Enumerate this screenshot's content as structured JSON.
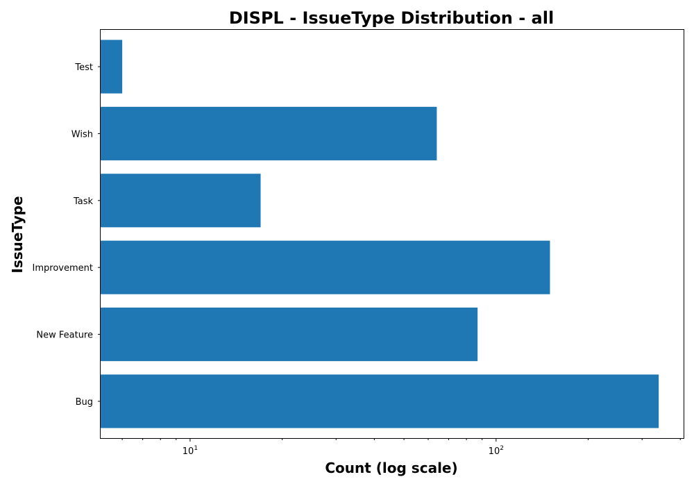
{
  "chart_data": {
    "type": "bar",
    "orientation": "horizontal",
    "title": "DISPL - IssueType Distribution - all",
    "xlabel": "Count (log scale)",
    "ylabel": "IssueType",
    "x_scale": "log",
    "xlim": [
      5.1,
      410
    ],
    "x_major_ticks": [
      {
        "value": 10,
        "label": "10",
        "exp": "1"
      },
      {
        "value": 100,
        "label": "10",
        "exp": "2"
      }
    ],
    "categories": [
      "Bug",
      "New Feature",
      "Improvement",
      "Task",
      "Wish",
      "Test"
    ],
    "values": [
      340,
      87,
      150,
      17,
      64,
      6
    ],
    "bar_color": "#1f77b4",
    "grid": false,
    "legend": "none"
  }
}
